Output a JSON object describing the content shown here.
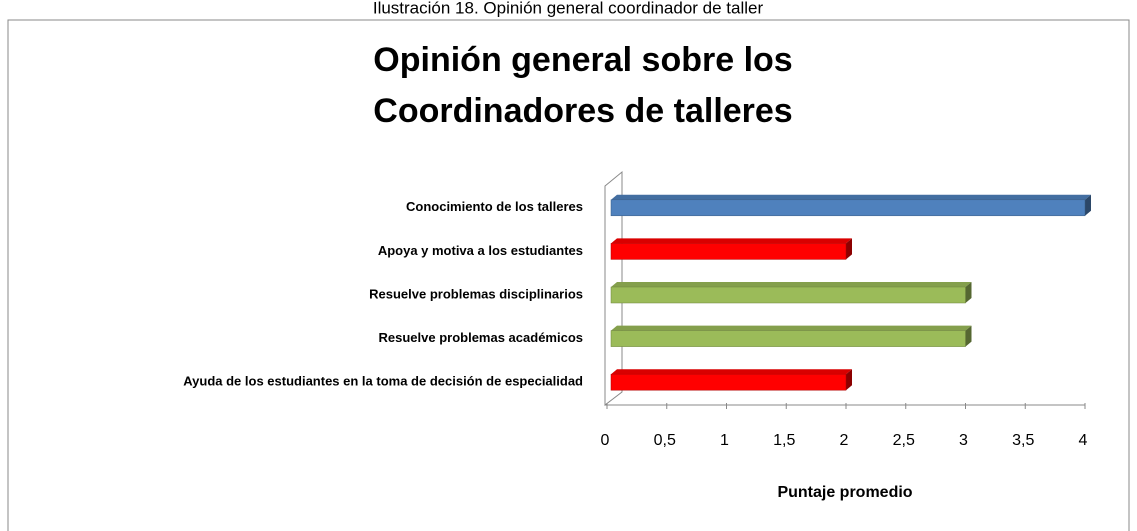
{
  "chart_data": {
    "type": "bar",
    "orientation": "horizontal",
    "caption": "Ilustración 18. Opinión general coordinador de taller",
    "title": [
      "Opinión general sobre los",
      "Coordinadores de talleres"
    ],
    "categories": [
      "Conocimiento de los talleres",
      "Apoya y motiva a los estudiantes",
      "Resuelve problemas disciplinarios",
      "Resuelve problemas académicos",
      "Ayuda de los estudiantes en la toma de decisión de especialidad"
    ],
    "values": [
      4,
      2,
      3,
      3,
      2
    ],
    "colors": [
      "#4f81bd",
      "#ff0000",
      "#9bbb59",
      "#9bbb59",
      "#ff0000"
    ],
    "xlim": [
      0,
      4
    ],
    "xticks": [
      0,
      {
        "value": 0.5,
        "label": "0,5"
      },
      1,
      {
        "value": 1.5,
        "label": "1,5"
      },
      2,
      {
        "value": 2.5,
        "label": "2,5"
      },
      3,
      {
        "value": 3.5,
        "label": "3,5"
      },
      4
    ],
    "xlabel": "Puntaje promedio"
  }
}
